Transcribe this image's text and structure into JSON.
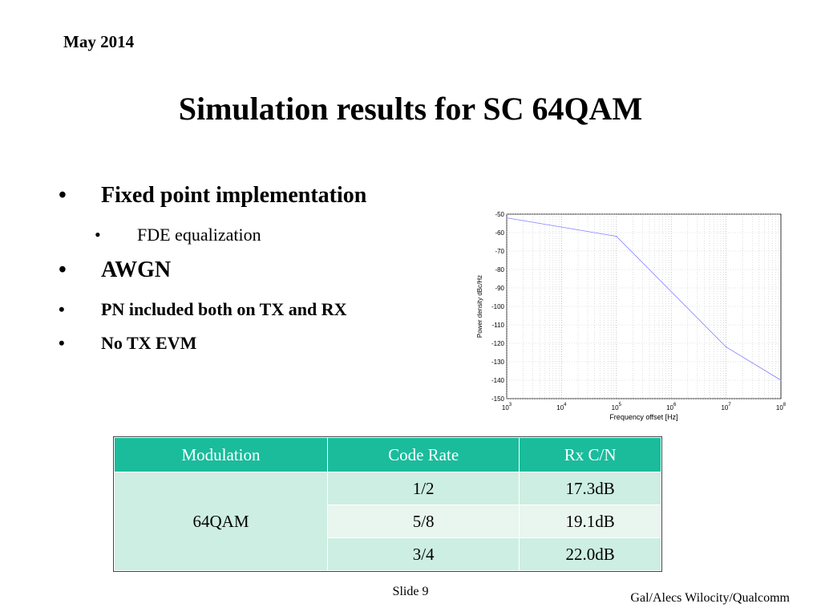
{
  "header": {
    "date": "May 2014",
    "title": "Simulation results for SC 64QAM"
  },
  "bullets": {
    "b1": "Fixed point implementation",
    "b2": "FDE equalization",
    "b3": "AWGN",
    "b4": "PN included both on TX and RX",
    "b5": "No TX EVM",
    "dot": "•"
  },
  "chart_data": {
    "type": "line",
    "xlabel": "Frequency offset [Hz]",
    "ylabel": "Power density dBc/Hz",
    "xscale": "log",
    "xlim": [
      1000,
      100000000
    ],
    "ylim": [
      -150,
      -50
    ],
    "x_tick_labels": [
      "10^3",
      "10^4",
      "10^5",
      "10^6",
      "10^7",
      "10^8"
    ],
    "y_tick_labels": [
      "-50",
      "-60",
      "-70",
      "-80",
      "-90",
      "-100",
      "-110",
      "-120",
      "-130",
      "-140",
      "-150"
    ],
    "grid": true,
    "series": [
      {
        "color": "#8080ff",
        "points": [
          [
            1000,
            -52
          ],
          [
            100000,
            -62
          ],
          [
            10000000,
            -122
          ],
          [
            100000000,
            -140
          ]
        ]
      }
    ]
  },
  "table": {
    "headers": [
      "Modulation",
      "Code Rate",
      "Rx C/N"
    ],
    "modulation": "64QAM",
    "rows": [
      {
        "rate": "1/2",
        "cn": "17.3dB"
      },
      {
        "rate": "5/8",
        "cn": "19.1dB"
      },
      {
        "rate": "3/4",
        "cn": "22.0dB"
      }
    ]
  },
  "footer": {
    "slide": "Slide 9",
    "author": "Gal/Alecs Wilocity/Qualcomm"
  }
}
